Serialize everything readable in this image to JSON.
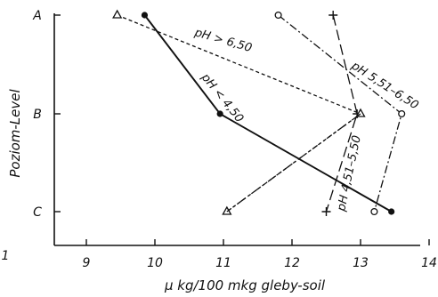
{
  "chart_data": {
    "type": "line",
    "xlabel": "μ kg/100 mkg gleby-soil",
    "ylabel": "Poziom-Level",
    "xlim": [
      8.5,
      14.2
    ],
    "xticks": [
      9,
      10,
      11,
      12,
      13,
      14
    ],
    "x_edge_label": "1",
    "categories": [
      "A",
      "B",
      "C"
    ],
    "grid": false,
    "series": [
      {
        "name": "pH < 4,50",
        "style": "solid",
        "marker": "filled-circle",
        "points": [
          {
            "level": "A",
            "x": 9.85
          },
          {
            "level": "B",
            "x": 10.95
          },
          {
            "level": "C",
            "x": 13.45
          }
        ]
      },
      {
        "name": "pH 4,51–5,50",
        "style": "long-dash",
        "marker": "plus",
        "points": [
          {
            "level": "A",
            "x": 12.6
          },
          {
            "level": "B",
            "x": 12.95
          },
          {
            "level": "C",
            "x": 12.5
          }
        ]
      },
      {
        "name": "pH 5,51–6,50",
        "style": "dash-dot",
        "marker": "open-circle",
        "points": [
          {
            "level": "A",
            "x": 11.8
          },
          {
            "level": "B",
            "x": 13.6
          },
          {
            "level": "C",
            "x": 13.2
          }
        ]
      },
      {
        "name": "pH > 6,50",
        "style": "dotted",
        "marker": "open-triangle",
        "points": [
          {
            "level": "A",
            "x": 9.45
          },
          {
            "level": "B",
            "x": 13.0
          },
          {
            "level": "C",
            "x": 11.05
          }
        ]
      },
      {
        "name": "",
        "style": "dash-dot-dot",
        "marker": "none",
        "points": [
          {
            "level": "B",
            "x": 13.0
          },
          {
            "level": "C",
            "x": 11.05
          }
        ]
      }
    ]
  }
}
